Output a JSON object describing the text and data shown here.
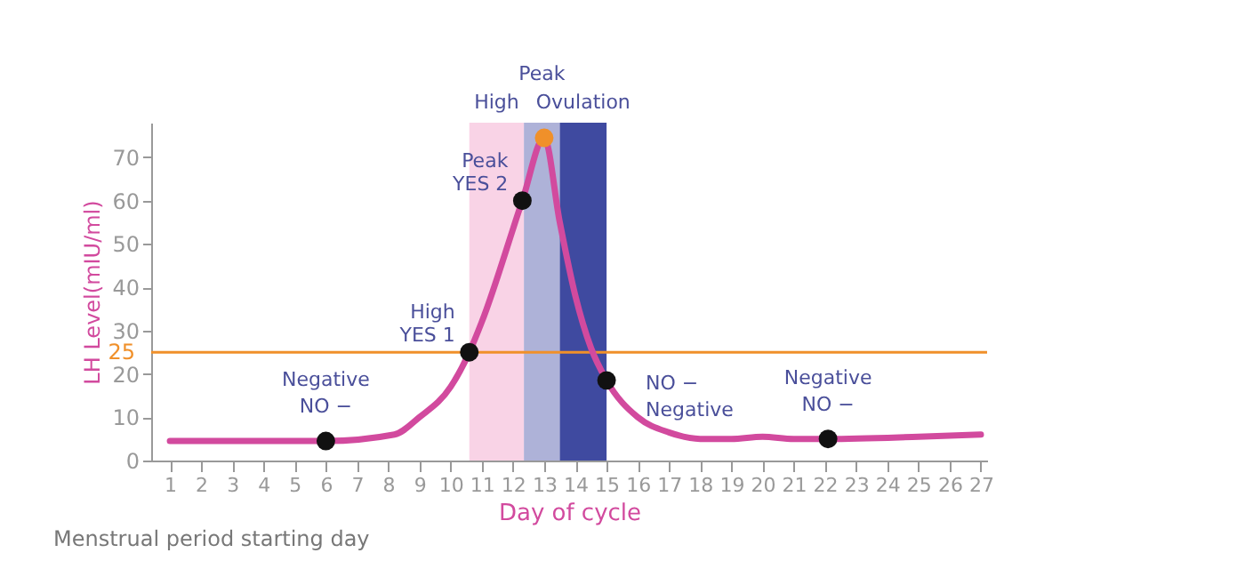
{
  "chart_data": {
    "type": "line",
    "xlabel": "Day of cycle",
    "ylabel": "LH Level(mIU/ml)",
    "xlim": [
      0.4,
      27.2
    ],
    "xticks": [
      1,
      2,
      3,
      4,
      5,
      6,
      7,
      8,
      9,
      10,
      11,
      12,
      13,
      14,
      15,
      16,
      17,
      18,
      19,
      20,
      21,
      22,
      23,
      24,
      25,
      26,
      27
    ],
    "ylim": [
      0,
      78
    ],
    "yticks": [
      0,
      10,
      20,
      30,
      40,
      50,
      60,
      70
    ],
    "series": [
      {
        "color": "#d24a9e",
        "x": [
          1,
          3,
          6,
          8.2,
          9,
          10,
          10.6,
          11,
          12.3,
          13,
          13.5,
          14,
          14.5,
          15,
          16,
          17,
          18,
          19,
          20,
          21,
          22.1,
          25,
          27
        ],
        "values": [
          4.5,
          4.5,
          4.5,
          6,
          10,
          17,
          25,
          32,
          60,
          74.5,
          55,
          38,
          26,
          18.5,
          10,
          6.5,
          5,
          5,
          5.5,
          5,
          5,
          5.5,
          6
        ]
      },
      {
        "type": "scatter",
        "marker": "circle",
        "color": "#111111",
        "x": [
          6,
          10.6,
          12.3,
          15,
          22.1
        ],
        "values": [
          4.5,
          25,
          60,
          18.5,
          5
        ]
      },
      {
        "type": "scatter",
        "marker": "circle",
        "color": "#f0902a",
        "x": [
          13
        ],
        "values": [
          74.5
        ]
      }
    ],
    "ref_lines": [
      {
        "axis": "y",
        "value": 25,
        "label": "25",
        "color": "#f0902a"
      }
    ],
    "bands": [
      {
        "axis": "x",
        "from": 10.6,
        "to": 12.35,
        "label": "High",
        "color": "#f9d3e6"
      },
      {
        "axis": "x",
        "from": 12.35,
        "to": 13.5,
        "label": "Peak",
        "color": "#aeb2d8"
      },
      {
        "axis": "x",
        "from": 13.5,
        "to": 15,
        "label": "Ovulation",
        "color": "#3f4aa0"
      }
    ],
    "annotations": [
      {
        "text": "Negative",
        "x": 6,
        "y": 4.5
      },
      {
        "text": "NO −",
        "x": 6,
        "y": 4.5
      },
      {
        "text": "High",
        "x": 10.6,
        "y": 25
      },
      {
        "text": "YES 1",
        "x": 10.6,
        "y": 25
      },
      {
        "text": "Peak",
        "x": 12.3,
        "y": 60
      },
      {
        "text": "YES 2",
        "x": 12.3,
        "y": 60
      },
      {
        "text": "NO −",
        "x": 15,
        "y": 18.5
      },
      {
        "text": "Negative",
        "x": 15,
        "y": 18.5
      },
      {
        "text": "Negative",
        "x": 22.1,
        "y": 5
      },
      {
        "text": "NO −",
        "x": 22.1,
        "y": 5
      },
      "Menstrual period starting day"
    ],
    "grid": false
  }
}
